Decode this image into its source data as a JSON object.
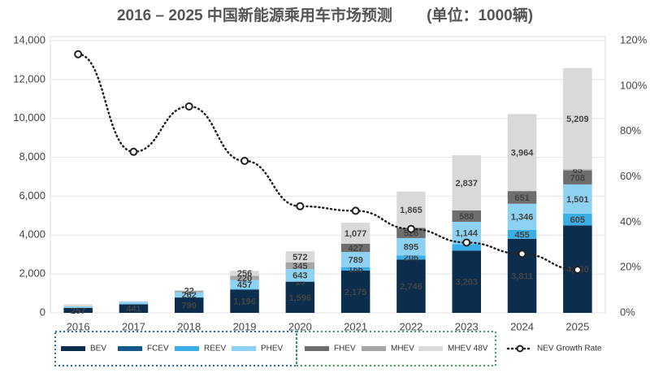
{
  "chart_data": {
    "type": "bar",
    "title": "2016 – 2025 中国新能源乘用车市场预测        (单位：1000辆)",
    "categories": [
      "2016",
      "2017",
      "2018",
      "2019",
      "2020",
      "2021",
      "2022",
      "2023",
      "2024",
      "2025"
    ],
    "stacked": true,
    "ylim": [
      0,
      14000
    ],
    "yticks": [
      0,
      {
        "value": 2000,
        "label": "2,000"
      },
      {
        "value": 4000,
        "label": "4,000"
      },
      {
        "value": 6000,
        "label": "6,000"
      },
      {
        "value": 8000,
        "label": "8,000"
      },
      {
        "value": 10000,
        "label": "10,000"
      },
      {
        "value": 12000,
        "label": "12,000"
      },
      {
        "value": 14000,
        "label": "14,000"
      }
    ],
    "y2lim": [
      0,
      120
    ],
    "y2ticks": [
      {
        "value": 0,
        "label": "0%"
      },
      {
        "value": 20,
        "label": "20%"
      },
      {
        "value": 40,
        "label": "40%"
      },
      {
        "value": 60,
        "label": "60%"
      },
      {
        "value": 80,
        "label": "80%"
      },
      {
        "value": 100,
        "label": "100%"
      },
      {
        "value": 120,
        "label": "120%"
      }
    ],
    "grid": true,
    "series": [
      {
        "name": "BEV",
        "color": "#0c2d4c",
        "values": [
          257,
          441,
          790,
          1196,
          1596,
          2175,
          2746,
          3203,
          3811,
          4500
        ],
        "value_labels": [
          "257",
          "441",
          "790",
          "1,196",
          "1,596",
          "2,175",
          "2,746",
          "3,203",
          "3,811",
          "4,500"
        ]
      },
      {
        "name": "FCEV",
        "color": "#14598a",
        "values": [
          0,
          0,
          1,
          5,
          15,
          0,
          0,
          0,
          0,
          0
        ],
        "value_labels": [
          null,
          null,
          null,
          null,
          "15",
          null,
          null,
          null,
          null,
          null
        ]
      },
      {
        "name": "REEV",
        "color": "#3aaee6",
        "values": [
          0,
          0,
          10,
          29,
          0,
          166,
          206,
          333,
          455,
          605
        ],
        "value_labels": [
          null,
          null,
          null,
          null,
          null,
          "166",
          "206",
          null,
          "455",
          "605"
        ]
      },
      {
        "name": "PHEV",
        "color": "#8dd2f3",
        "values": [
          80,
          130,
          262,
          457,
          643,
          789,
          895,
          1144,
          1346,
          1501
        ],
        "value_labels": [
          null,
          null,
          "262",
          "457",
          "643",
          "789",
          "895",
          "1,144",
          "1,346",
          "1,501"
        ]
      },
      {
        "name": "FHEV",
        "color": "#6e6e6e",
        "values": [
          0,
          0,
          0,
          0,
          0,
          427,
          526,
          588,
          651,
          708
        ],
        "value_labels": [
          null,
          null,
          null,
          null,
          null,
          "427",
          "526",
          "588",
          "651",
          "708"
        ]
      },
      {
        "name": "MHEV",
        "color": "#a5a5a5",
        "values": [
          0,
          0,
          77,
          220,
          345,
          0,
          0,
          0,
          0,
          65
        ],
        "value_labels": [
          null,
          null,
          null,
          "220",
          "345",
          null,
          null,
          null,
          null,
          "65"
        ]
      },
      {
        "name": "MHEV 48V",
        "color": "#d9d9d9",
        "values": [
          100,
          35,
          22,
          256,
          572,
          1077,
          1865,
          2837,
          3964,
          5209
        ],
        "value_labels": [
          null,
          null,
          "22",
          "256",
          "572",
          "1,077",
          "1,865",
          "2,837",
          "3,964",
          "5,209"
        ]
      },
      {
        "name": "NEV Growth Rate",
        "type": "line",
        "axis": "y2",
        "color": "#222222",
        "values": [
          114,
          71,
          91,
          67,
          47,
          45,
          37,
          31,
          26,
          19
        ]
      }
    ]
  }
}
